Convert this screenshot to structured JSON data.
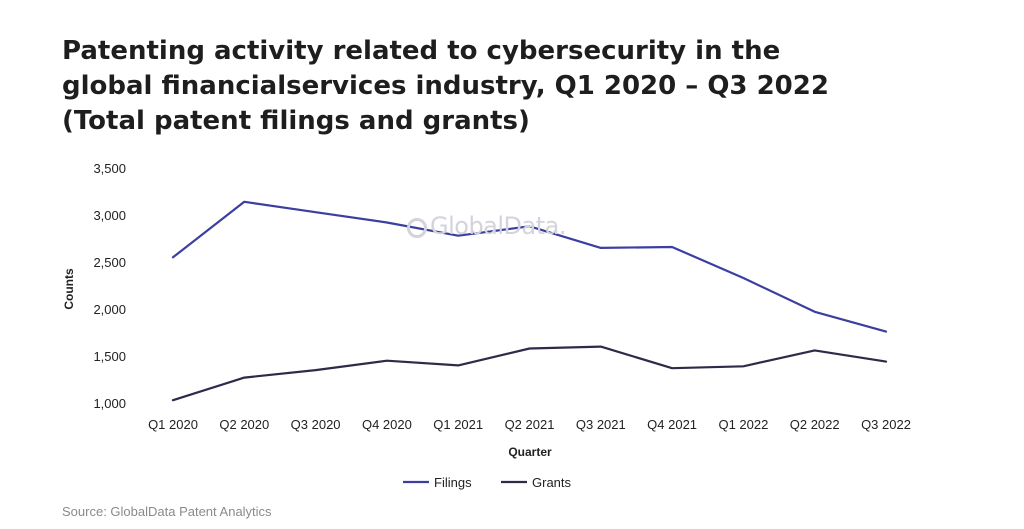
{
  "title": "Patenting activity related to cybersecurity in the global financialservices industry, Q1 2020 – Q3 2022 (Total patent filings and grants)",
  "watermark": "GlobalData.",
  "source": "Source: GlobalData Patent Analytics",
  "chart_data": {
    "type": "line",
    "categories": [
      "Q1 2020",
      "Q2 2020",
      "Q3 2020",
      "Q4 2020",
      "Q1 2021",
      "Q2 2021",
      "Q3 2021",
      "Q4 2021",
      "Q1 2022",
      "Q2 2022",
      "Q3 2022"
    ],
    "series": [
      {
        "name": "Filings",
        "color": "#3c3fa0",
        "values": [
          2550,
          3140,
          3030,
          2920,
          2780,
          2880,
          2650,
          2660,
          2330,
          1970,
          1760
        ]
      },
      {
        "name": "Grants",
        "color": "#2d2a4a",
        "values": [
          1030,
          1270,
          1350,
          1450,
          1400,
          1580,
          1600,
          1370,
          1390,
          1560,
          1440
        ]
      }
    ],
    "yticks": [
      "3,500",
      "3,000",
      "2,500",
      "2,000",
      "1,500",
      "1,000"
    ],
    "ylim": [
      1000,
      3500
    ],
    "xlabel": "Quarter",
    "ylabel": "Counts",
    "grid": false,
    "legend_position": "bottom"
  }
}
